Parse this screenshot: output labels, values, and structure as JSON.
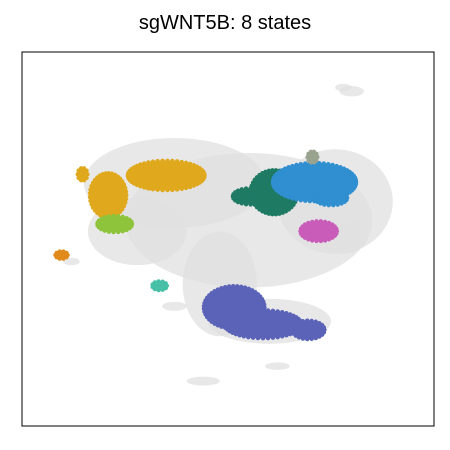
{
  "chart_data": {
    "type": "scatter",
    "title": "sgWNT5B: 8 states",
    "xlabel": "",
    "ylabel": "",
    "grid": false,
    "legend": "none",
    "axes_ticks": false,
    "background_color": "#e0e0e0",
    "series": [
      {
        "color": "#e0a81c",
        "blobs": [
          [
            0.147,
            0.327,
            0.012,
            0.017
          ],
          [
            0.209,
            0.383,
            0.045,
            0.06
          ],
          [
            0.35,
            0.33,
            0.095,
            0.04
          ],
          [
            0.315,
            0.345,
            0.03,
            0.02
          ]
        ]
      },
      {
        "color": "#1f7a64",
        "blobs": [
          [
            0.555,
            0.386,
            0.044,
            0.022
          ],
          [
            0.612,
            0.375,
            0.058,
            0.06
          ]
        ]
      },
      {
        "color": "#2f8fd0",
        "blobs": [
          [
            0.71,
            0.348,
            0.103,
            0.052
          ],
          [
            0.75,
            0.39,
            0.04,
            0.02
          ]
        ]
      },
      {
        "color": "#99a390",
        "blobs": [
          [
            0.705,
            0.281,
            0.012,
            0.015
          ]
        ]
      },
      {
        "color": "#c85cb8",
        "blobs": [
          [
            0.72,
            0.479,
            0.045,
            0.027
          ]
        ]
      },
      {
        "color": "#8ec43c",
        "blobs": [
          [
            0.225,
            0.46,
            0.043,
            0.022
          ]
        ]
      },
      {
        "color": "#e08a1a",
        "blobs": [
          [
            0.096,
            0.543,
            0.015,
            0.01
          ]
        ]
      },
      {
        "color": "#48c0a8",
        "blobs": [
          [
            0.334,
            0.625,
            0.018,
            0.012
          ]
        ]
      },
      {
        "color": "#5a63b8",
        "blobs": [
          [
            0.515,
            0.683,
            0.075,
            0.058
          ],
          [
            0.585,
            0.728,
            0.095,
            0.038
          ],
          [
            0.695,
            0.743,
            0.04,
            0.025
          ]
        ]
      }
    ]
  }
}
